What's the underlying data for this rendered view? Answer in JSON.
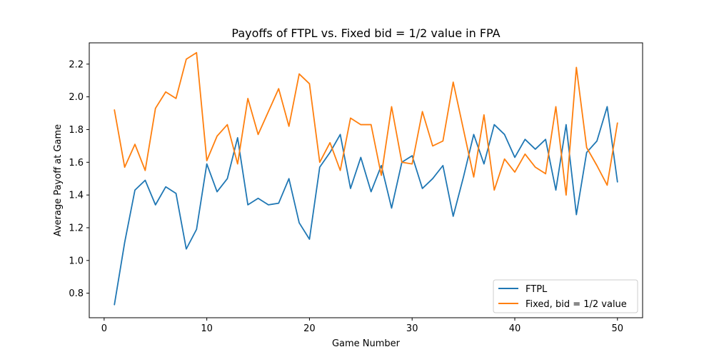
{
  "chart_data": {
    "type": "line",
    "title": "Payoffs of FTPL vs. Fixed bid = 1/2 value in FPA",
    "xlabel": "Game Number",
    "ylabel": "Average Payoff at Game",
    "xlim": [
      -1.45,
      52.45
    ],
    "ylim": [
      0.65,
      2.33
    ],
    "xticks": [
      0,
      10,
      20,
      30,
      40,
      50
    ],
    "yticks": [
      0.8,
      1.0,
      1.2,
      1.4,
      1.6,
      1.8,
      2.0,
      2.2
    ],
    "xtick_labels": [
      "0",
      "10",
      "20",
      "30",
      "40",
      "50"
    ],
    "ytick_labels": [
      "0.8",
      "1.0",
      "1.2",
      "1.4",
      "1.6",
      "1.8",
      "2.0",
      "2.2"
    ],
    "grid": false,
    "legend_position": "bottom-right",
    "x": [
      1,
      2,
      3,
      4,
      5,
      6,
      7,
      8,
      9,
      10,
      11,
      12,
      13,
      14,
      15,
      16,
      17,
      18,
      19,
      20,
      21,
      22,
      23,
      24,
      25,
      26,
      27,
      28,
      29,
      30,
      31,
      32,
      33,
      34,
      35,
      36,
      37,
      38,
      39,
      40,
      41,
      42,
      43,
      44,
      45,
      46,
      47,
      48,
      49,
      50
    ],
    "series": [
      {
        "name": "FTPL",
        "color": "#1f77b4",
        "values": [
          0.73,
          1.11,
          1.43,
          1.49,
          1.34,
          1.45,
          1.41,
          1.07,
          1.19,
          1.59,
          1.42,
          1.5,
          1.75,
          1.34,
          1.38,
          1.34,
          1.35,
          1.5,
          1.23,
          1.13,
          1.57,
          1.66,
          1.77,
          1.44,
          1.63,
          1.42,
          1.58,
          1.32,
          1.6,
          1.64,
          1.44,
          1.5,
          1.58,
          1.27,
          1.51,
          1.77,
          1.59,
          1.83,
          1.77,
          1.63,
          1.74,
          1.68,
          1.74,
          1.43,
          1.83,
          1.28,
          1.66,
          1.73,
          1.94,
          1.48
        ]
      },
      {
        "name": "Fixed, bid = 1/2 value",
        "color": "#ff7f0e",
        "values": [
          1.92,
          1.57,
          1.71,
          1.55,
          1.93,
          2.03,
          1.99,
          2.23,
          2.27,
          1.61,
          1.76,
          1.83,
          1.59,
          1.99,
          1.77,
          1.91,
          2.05,
          1.82,
          2.14,
          2.08,
          1.6,
          1.72,
          1.55,
          1.87,
          1.83,
          1.83,
          1.52,
          1.94,
          1.6,
          1.59,
          1.91,
          1.7,
          1.73,
          2.09,
          1.8,
          1.51,
          1.89,
          1.43,
          1.62,
          1.54,
          1.65,
          1.57,
          1.53,
          1.94,
          1.4,
          2.18,
          1.69,
          1.58,
          1.46,
          1.84
        ]
      }
    ]
  }
}
